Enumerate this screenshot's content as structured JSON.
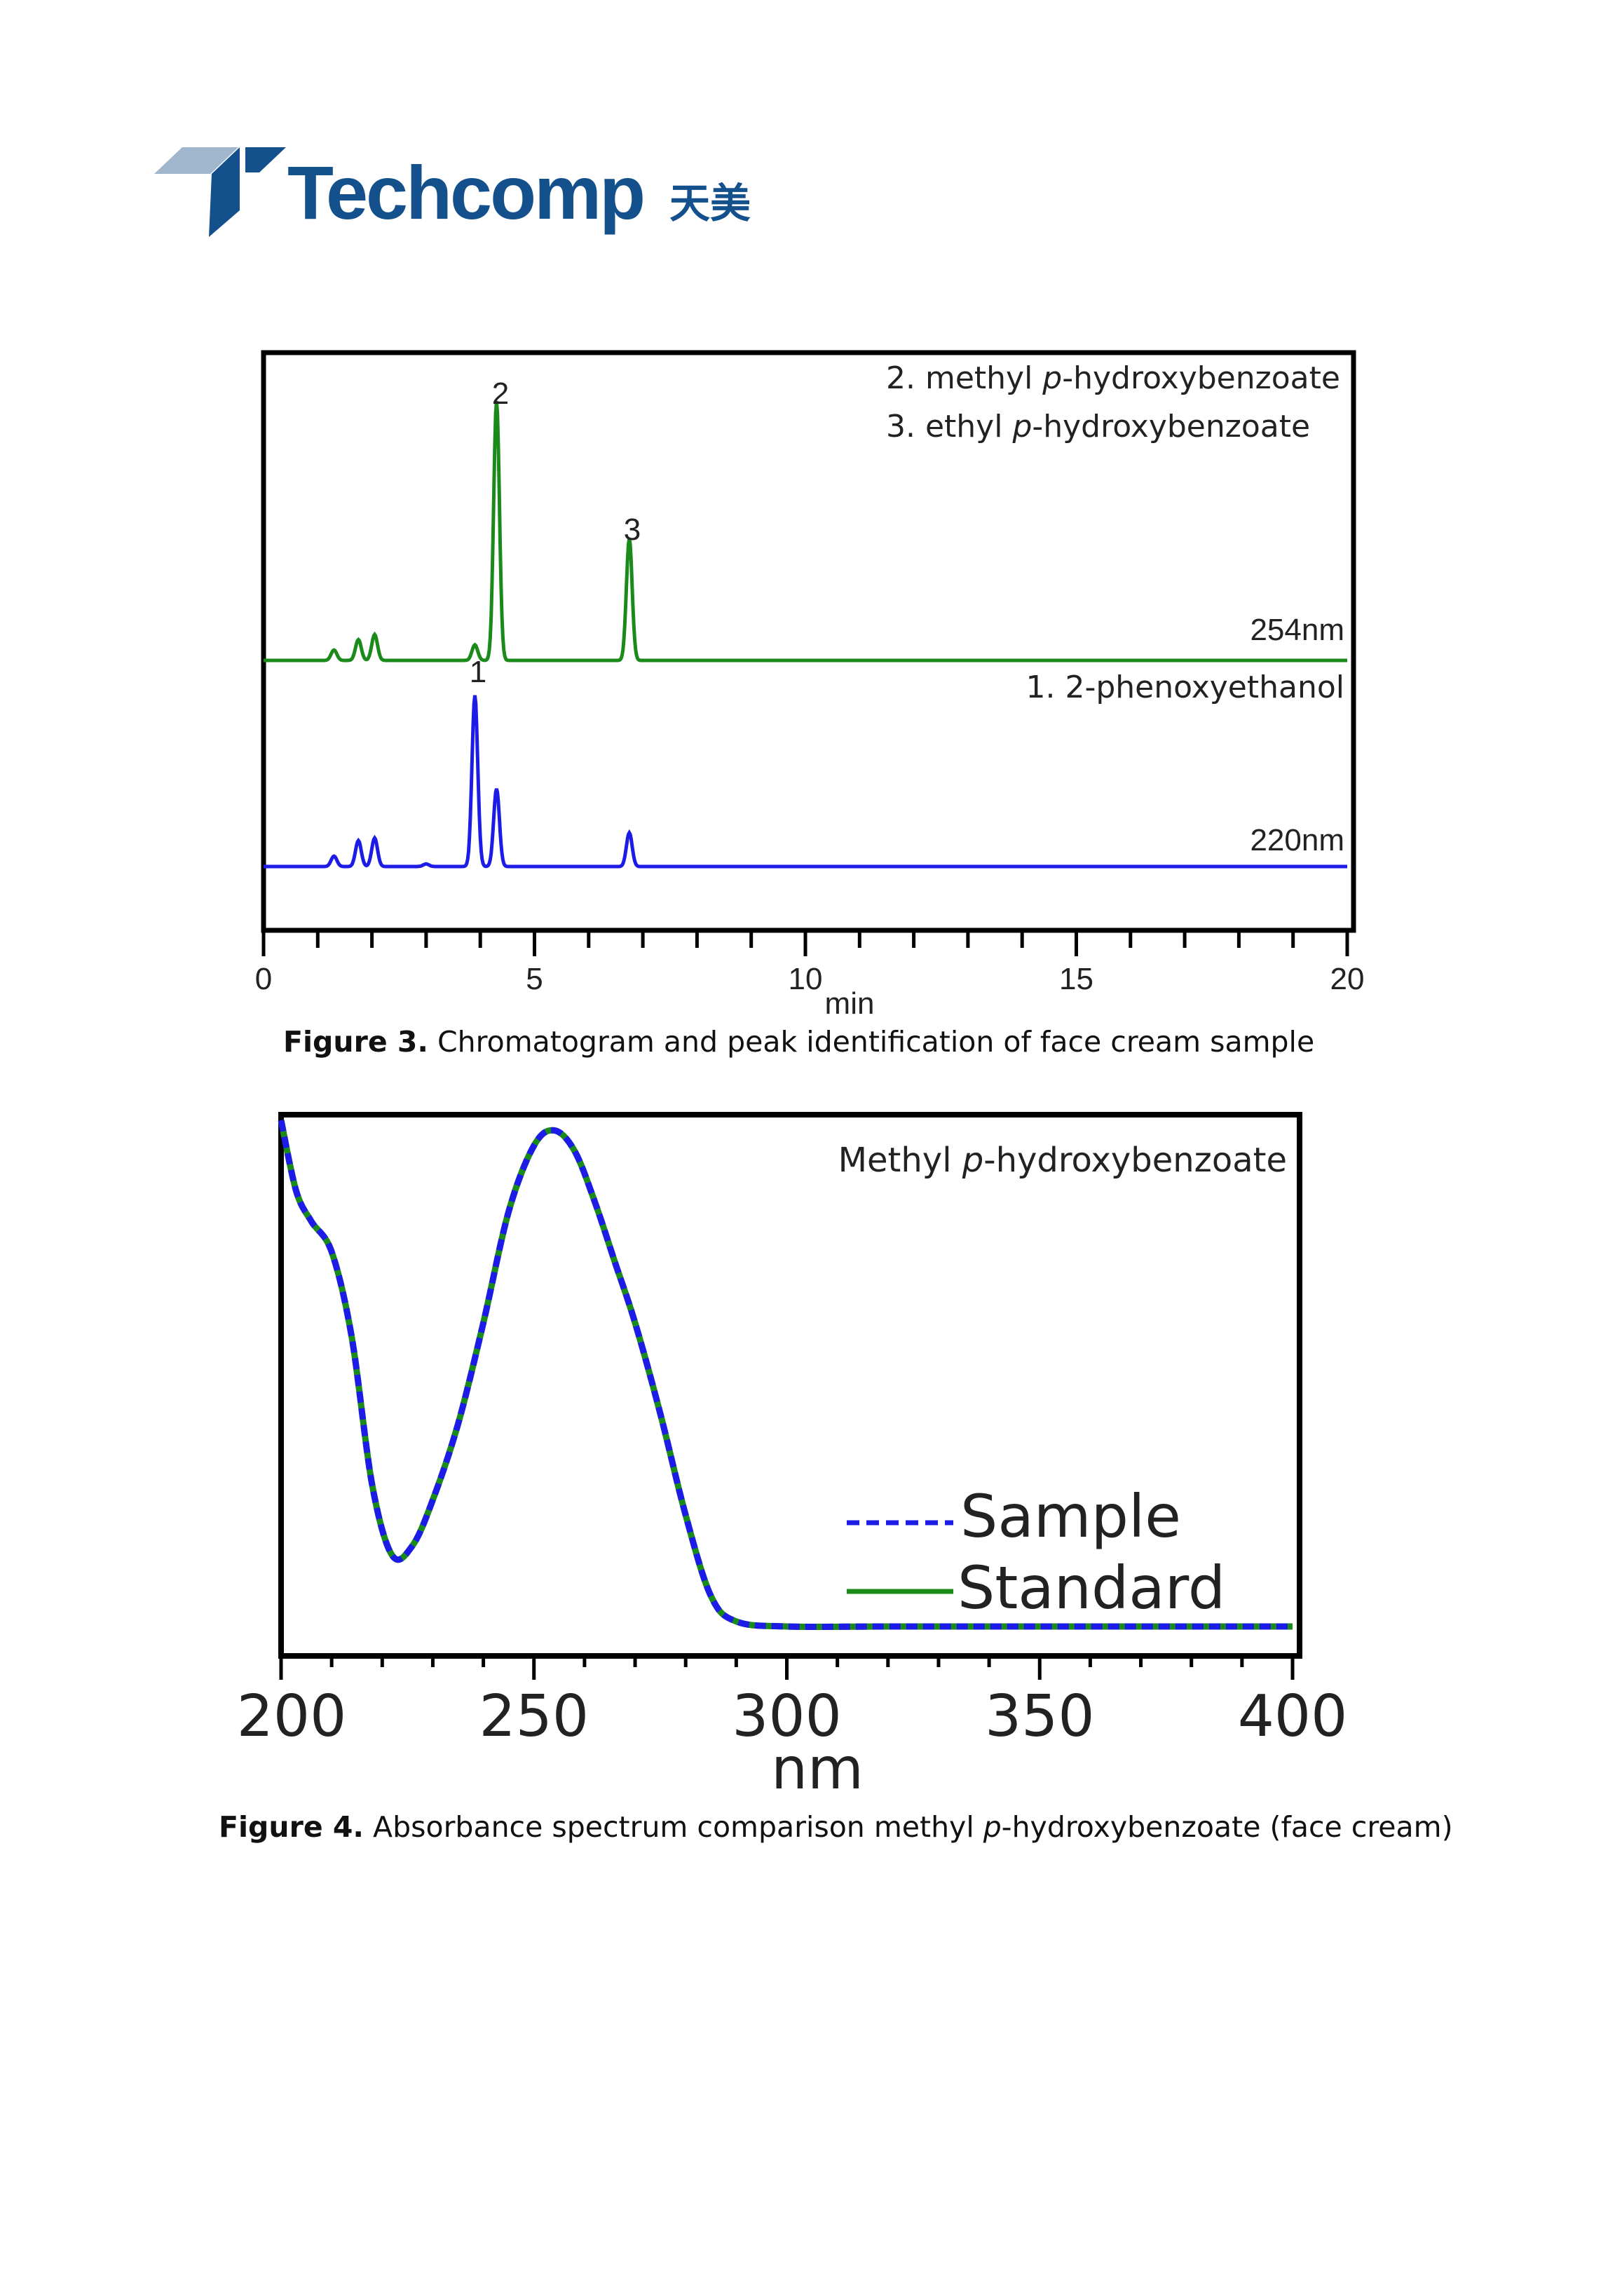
{
  "logo": {
    "brand": "Techcomp",
    "brand_cn": "天美",
    "colors": {
      "dark": "#14508c",
      "light": "#9fb6cc"
    }
  },
  "figure3": {
    "caption_label": "Figure 3.",
    "caption_text": " Chromatogram and peak identification of face cream sample",
    "legend_lines": [
      {
        "prefix": "2. methyl ",
        "italic": "p",
        "suffix": "-hydroxybenzoate"
      },
      {
        "prefix": "3. ethyl ",
        "italic": "p",
        "suffix": "-hydroxybenzoate"
      }
    ],
    "mid_legend": "1. 2-phenoxyethanol",
    "trace_labels": {
      "upper": "254nm",
      "lower": "220nm"
    },
    "peak_labels": {
      "p1": "1",
      "p2": "2",
      "p3": "3"
    },
    "colors": {
      "upper": "#1a8a1a",
      "lower": "#1c1ce6",
      "frame": "#000000"
    },
    "chart_data": {
      "type": "line",
      "xlabel": "min",
      "ylabel": "",
      "xlim": [
        0,
        20
      ],
      "xticks": [
        0,
        5,
        10,
        15,
        20
      ],
      "xtick_labels": [
        "0",
        "5",
        "10",
        "15",
        "20"
      ],
      "grid": false,
      "series": [
        {
          "name": "254nm",
          "baseline": 0,
          "peaks": [
            {
              "rt": 1.3,
              "height": 0.04
            },
            {
              "rt": 1.75,
              "height": 0.08
            },
            {
              "rt": 2.05,
              "height": 0.1
            },
            {
              "rt": 3.9,
              "height": 0.06
            },
            {
              "rt": 4.3,
              "height": 1.0
            },
            {
              "rt": 6.75,
              "height": 0.47
            }
          ]
        },
        {
          "name": "220nm",
          "baseline": 0,
          "peaks": [
            {
              "rt": 1.3,
              "height": 0.04
            },
            {
              "rt": 1.75,
              "height": 0.1
            },
            {
              "rt": 2.05,
              "height": 0.11
            },
            {
              "rt": 3.0,
              "height": 0.01
            },
            {
              "rt": 3.9,
              "height": 0.66
            },
            {
              "rt": 4.3,
              "height": 0.3
            },
            {
              "rt": 6.75,
              "height": 0.13
            }
          ]
        }
      ]
    }
  },
  "figure4": {
    "caption_label": "Figure 4.",
    "caption_text": " Absorbance spectrum comparison methyl ",
    "caption_italic": "p",
    "caption_suffix": "-hydroxybenzoate (face cream)",
    "title_prefix": "Methyl ",
    "title_italic": "p",
    "title_suffix": "-hydroxybenzoate",
    "colors": {
      "sample": "#1c1ce6",
      "standard": "#1a8a1a"
    },
    "chart_data": {
      "type": "line",
      "xlabel": "nm",
      "ylabel": "",
      "xlim": [
        200,
        400
      ],
      "xticks": [
        200,
        250,
        300,
        350,
        400
      ],
      "xtick_labels": [
        "200",
        "250",
        "300",
        "350",
        "400"
      ],
      "grid": false,
      "legend": "bottom-right",
      "series": [
        {
          "name": "Sample",
          "style": "dashed",
          "x": [
            200,
            203,
            206,
            210,
            214,
            218,
            222,
            226,
            230,
            235,
            240,
            245,
            250,
            254,
            258,
            262,
            266,
            270,
            275,
            280,
            285,
            290,
            300,
            320,
            350,
            400
          ],
          "y": [
            1.0,
            0.86,
            0.8,
            0.74,
            0.57,
            0.28,
            0.14,
            0.16,
            0.25,
            0.4,
            0.6,
            0.82,
            0.95,
            0.98,
            0.94,
            0.84,
            0.72,
            0.6,
            0.42,
            0.22,
            0.06,
            0.01,
            0.0,
            0.0,
            0.0,
            0.0
          ]
        },
        {
          "name": "Standard",
          "style": "solid",
          "x": [
            200,
            203,
            206,
            210,
            214,
            218,
            222,
            226,
            230,
            235,
            240,
            245,
            250,
            254,
            258,
            262,
            266,
            270,
            275,
            280,
            285,
            290,
            300,
            320,
            350,
            400
          ],
          "y": [
            1.0,
            0.86,
            0.8,
            0.74,
            0.57,
            0.28,
            0.14,
            0.16,
            0.25,
            0.4,
            0.6,
            0.82,
            0.95,
            0.98,
            0.94,
            0.84,
            0.72,
            0.6,
            0.42,
            0.22,
            0.06,
            0.01,
            0.0,
            0.0,
            0.0,
            0.0
          ]
        }
      ]
    }
  }
}
